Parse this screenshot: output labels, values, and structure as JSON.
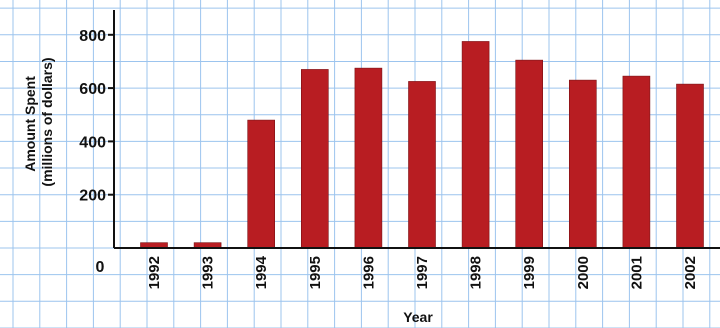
{
  "chart_data": {
    "type": "bar",
    "categories": [
      "1992",
      "1993",
      "1994",
      "1995",
      "1996",
      "1997",
      "1998",
      "1999",
      "2000",
      "2001",
      "2002"
    ],
    "values": [
      20,
      20,
      480,
      670,
      675,
      625,
      775,
      705,
      630,
      645,
      615
    ],
    "xlabel": "Year",
    "ylabel_line1": "Amount Spent",
    "ylabel_line2": "(millions of dollars)",
    "ylim": [
      0,
      900
    ],
    "yticks": [
      0,
      200,
      400,
      600,
      800
    ],
    "grid": true,
    "colors": {
      "bar": "#b81d22",
      "bar_edge": "#7a0f12",
      "grid": "#9cc4ee",
      "background": "#ffffff",
      "axis": "#111111"
    }
  }
}
